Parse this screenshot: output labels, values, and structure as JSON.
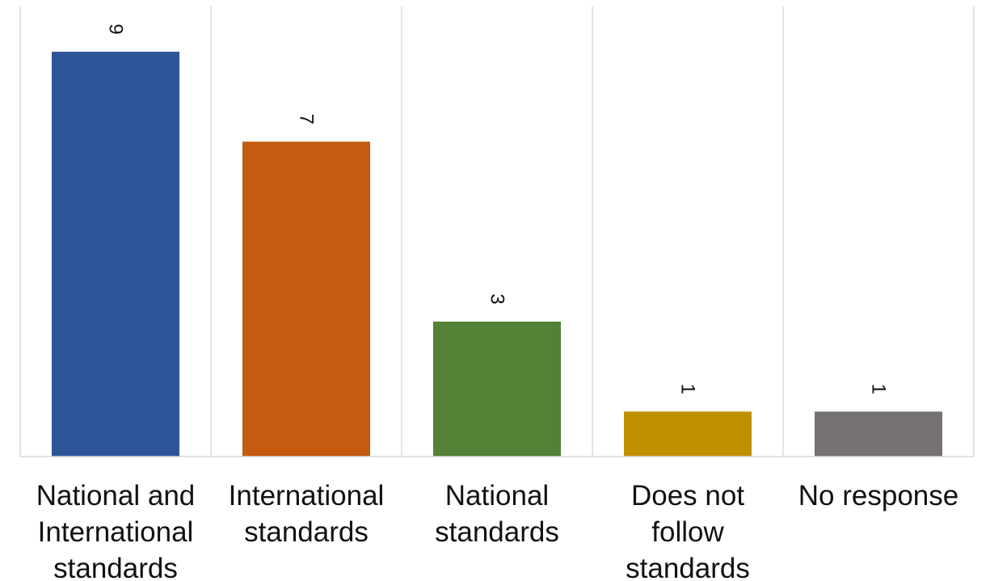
{
  "chart_data": {
    "type": "bar",
    "categories": [
      [
        "National and",
        "International",
        "standards"
      ],
      [
        "International",
        "standards"
      ],
      [
        "National",
        "standards"
      ],
      [
        "Does not",
        "follow",
        "standards"
      ],
      [
        "No response"
      ]
    ],
    "values": [
      9,
      7,
      3,
      1,
      1
    ],
    "colors": [
      "#2e5597",
      "#c55a11",
      "#538135",
      "#bf9000",
      "#767171"
    ],
    "ylim": [
      0,
      10
    ],
    "grid": "vertical separators",
    "title": "",
    "xlabel": "",
    "ylabel": ""
  }
}
